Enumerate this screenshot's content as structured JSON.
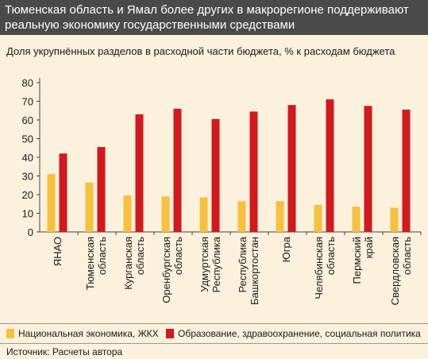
{
  "header": {
    "title": "Тюменская область и Ямал более других в макрорегионе поддерживают реальную экономику государственными средствами",
    "subtitle": "Доля укрупнённых разделов в расходной части бюджета, % к расходам бюджета"
  },
  "colors": {
    "series_1": "#f7c03d",
    "series_2": "#d3181e",
    "title_background": "#4a4a4a",
    "page_background": "#fbf1dd"
  },
  "chart_data": {
    "type": "bar",
    "categories": [
      "ЯНАО",
      "Тюменская область",
      "Курганская область",
      "Оренбургская область",
      "Удмуртская Республика",
      "Республика Башкортостан",
      "Югра",
      "Челябинская область",
      "Пермский край",
      "Свердловская область"
    ],
    "series": [
      {
        "name": "Национальная экономика, ЖКХ",
        "values": [
          31,
          26.5,
          19.5,
          19,
          18.5,
          16.5,
          16.5,
          14.5,
          13.5,
          13
        ]
      },
      {
        "name": "Образование, здравоохранение, социальная политика",
        "values": [
          42,
          45.5,
          63,
          66,
          60.5,
          64.5,
          68,
          71,
          67.5,
          65.5
        ]
      }
    ],
    "yticks": [
      0,
      10,
      20,
      30,
      40,
      50,
      60,
      70,
      80
    ],
    "ylim": [
      0,
      80
    ],
    "grid": false,
    "legend_position": "bottom"
  },
  "legend": {
    "item_1": "Национальная экономика, ЖКХ",
    "item_2": "Образование, здравоохранение, социальная политика"
  },
  "footer": {
    "source": "Источник: Расчеты автора"
  }
}
